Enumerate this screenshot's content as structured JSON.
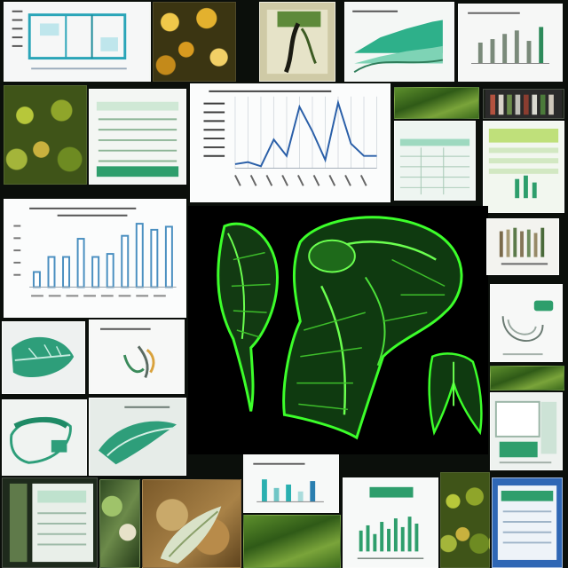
{
  "image": {
    "background_color": "#0b0f0b",
    "accent_green": "#37e02a",
    "accent_teal": "#1fa88a",
    "chart_blue": "#2a5fa8"
  },
  "tiles": [
    {
      "name": "thumb-floor-plan-document",
      "type": "document"
    },
    {
      "name": "thumb-yellow-leaves-photo",
      "type": "photo"
    },
    {
      "name": "thumb-plant-sketch-photo",
      "type": "photo"
    },
    {
      "name": "thumb-green-area-chart",
      "type": "chart"
    },
    {
      "name": "thumb-bar-chart-document",
      "type": "chart"
    },
    {
      "name": "thumb-green-leaves-photo",
      "type": "photo"
    },
    {
      "name": "thumb-table-document",
      "type": "document"
    },
    {
      "name": "thumb-line-chart",
      "type": "chart"
    },
    {
      "name": "thumb-field-photo",
      "type": "photo"
    },
    {
      "name": "thumb-striped-panel",
      "type": "photo"
    },
    {
      "name": "thumb-spreadsheet-document",
      "type": "document"
    },
    {
      "name": "thumb-green-form-document",
      "type": "document"
    },
    {
      "name": "thumb-bar-chart-large",
      "type": "chart"
    },
    {
      "name": "thumb-green-plant-wireframe",
      "type": "illustration"
    },
    {
      "name": "thumb-striped-chart-small",
      "type": "chart"
    },
    {
      "name": "thumb-diagram-document",
      "type": "document"
    },
    {
      "name": "thumb-leaf-illustration",
      "type": "illustration"
    },
    {
      "name": "thumb-sketch-illustration",
      "type": "illustration"
    },
    {
      "name": "thumb-leaf-closeup",
      "type": "illustration"
    },
    {
      "name": "thumb-leaf-brush-illustration",
      "type": "illustration"
    },
    {
      "name": "thumb-grass-photo",
      "type": "photo"
    },
    {
      "name": "thumb-ui-panel-document",
      "type": "document"
    },
    {
      "name": "thumb-dark-gallery",
      "type": "photo"
    },
    {
      "name": "thumb-mottled-photo",
      "type": "photo"
    },
    {
      "name": "thumb-soil-photo",
      "type": "photo"
    },
    {
      "name": "thumb-small-bar-chart",
      "type": "chart"
    },
    {
      "name": "thumb-bottom-bar-chart",
      "type": "chart"
    },
    {
      "name": "thumb-blue-window-document",
      "type": "document"
    }
  ],
  "line_chart": {
    "type": "line",
    "x": [
      1,
      2,
      3,
      4,
      5,
      6,
      7,
      8,
      9,
      10,
      11,
      12
    ],
    "series": [
      {
        "values": [
          2,
          3,
          1,
          14,
          6,
          30,
          18,
          4,
          32,
          12,
          6,
          6
        ]
      }
    ],
    "ylim": [
      0,
      35
    ]
  },
  "bar_chart": {
    "type": "bar",
    "values": [
      5,
      10,
      10,
      16,
      10,
      11,
      17,
      21,
      19,
      20
    ],
    "ylim": [
      0,
      22
    ]
  }
}
